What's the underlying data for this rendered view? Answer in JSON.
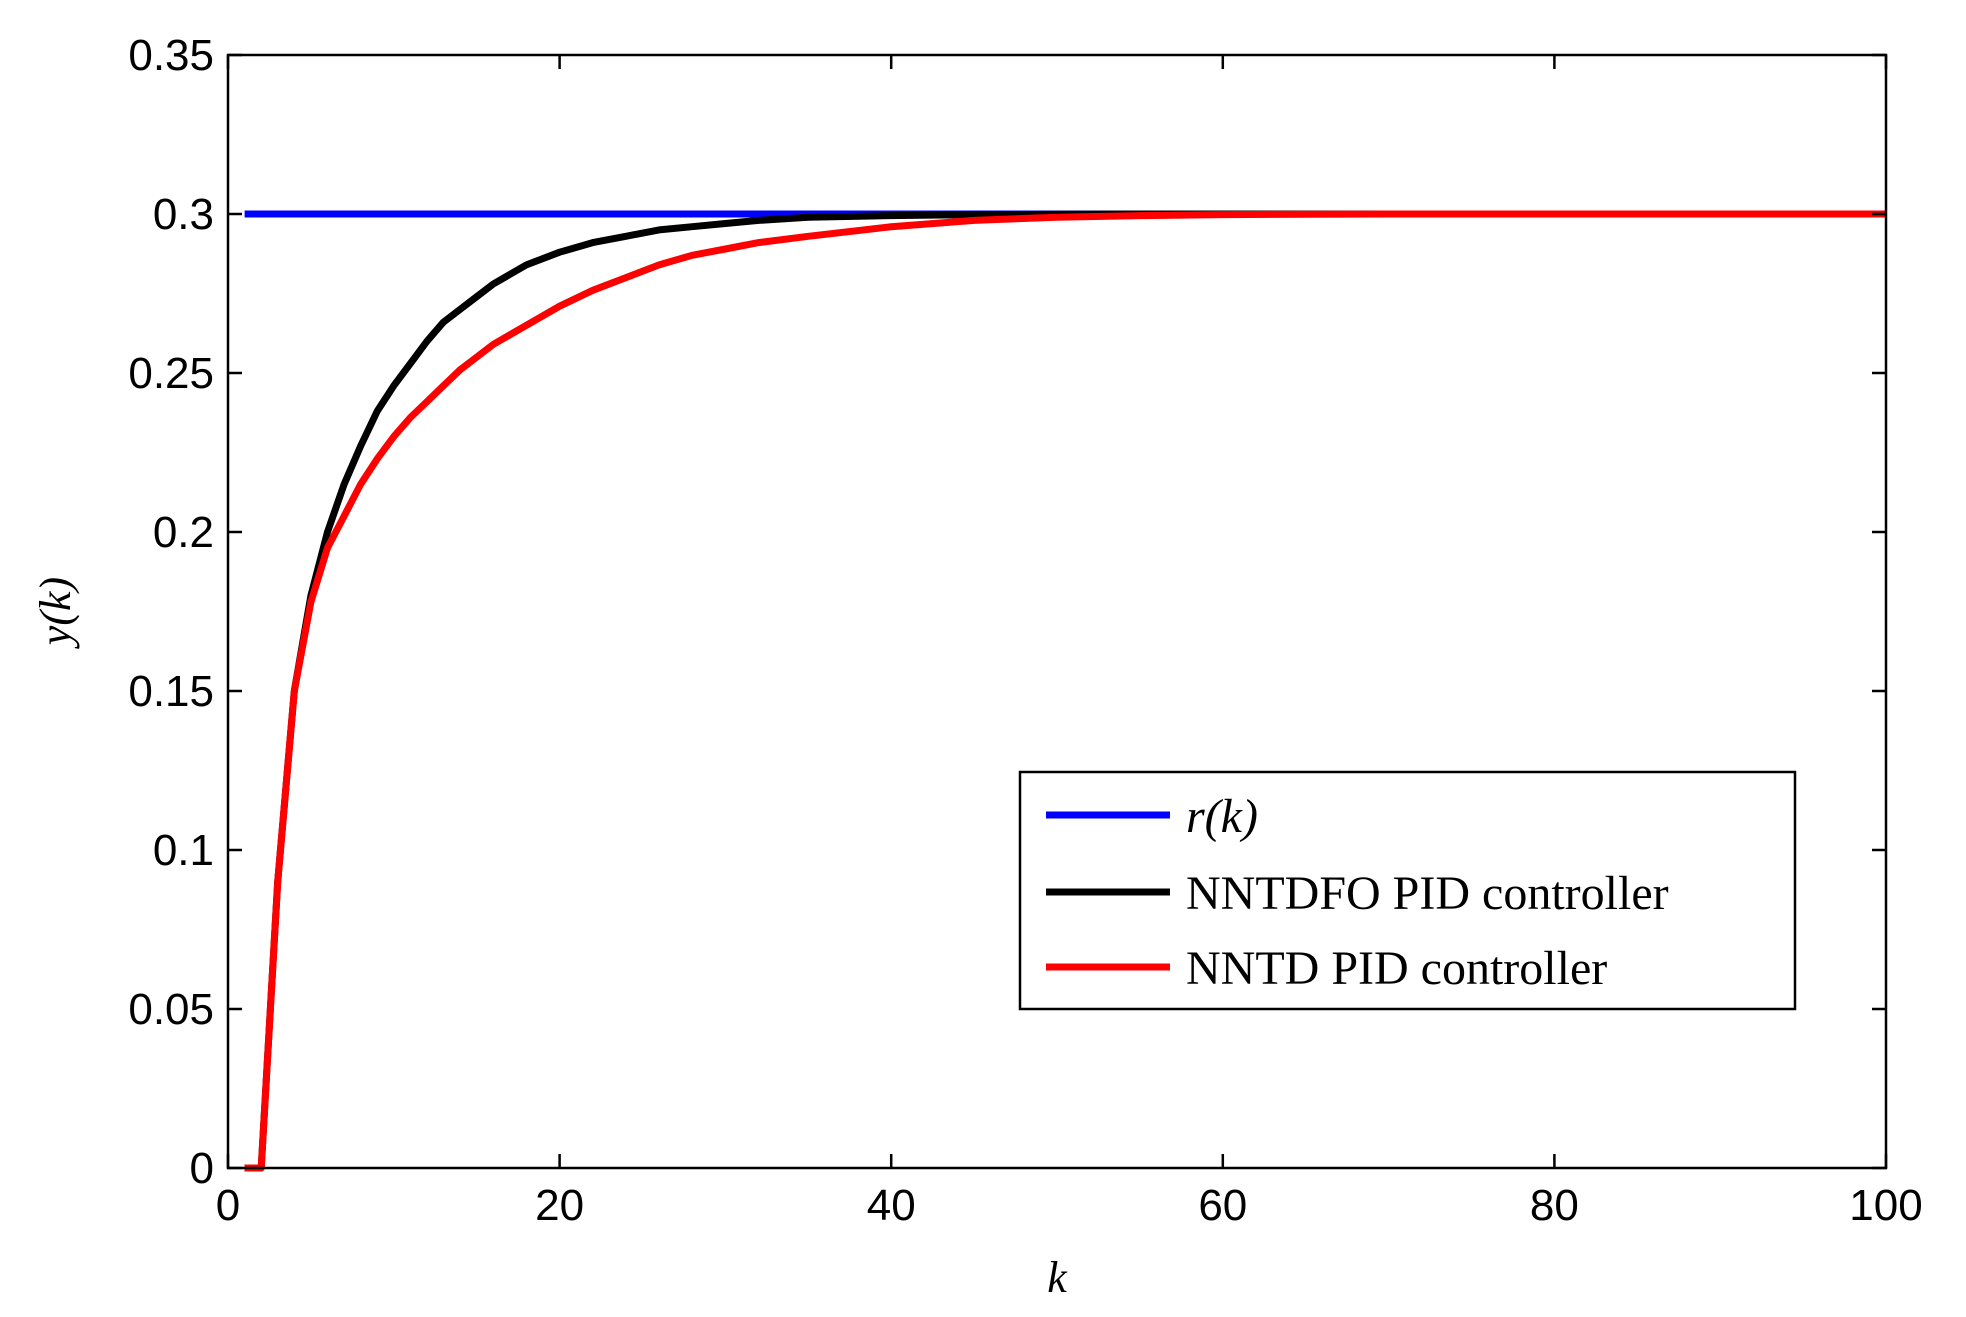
{
  "chart_data": {
    "type": "line",
    "title": "",
    "xlabel": "k",
    "ylabel": "y(k)",
    "xlim": [
      0,
      100
    ],
    "ylim": [
      0,
      0.35
    ],
    "xticks": [
      0,
      20,
      40,
      60,
      80,
      100
    ],
    "xtick_labels": [
      "0",
      "20",
      "40",
      "60",
      "80",
      "100"
    ],
    "yticks": [
      0,
      0.05,
      0.1,
      0.15,
      0.2,
      0.25,
      0.3,
      0.35
    ],
    "ytick_labels": [
      "0",
      "0.05",
      "0.1",
      "0.15",
      "0.2",
      "0.25",
      "0.3",
      "0.35"
    ],
    "grid": false,
    "legend_position": "bottom-right",
    "series": [
      {
        "name": "r(k)",
        "color": "#0000ff",
        "x": [
          1,
          100
        ],
        "y": [
          0.3,
          0.3
        ]
      },
      {
        "name": "NNTDFO PID controller",
        "color": "#000000",
        "x": [
          1,
          2,
          3,
          4,
          5,
          6,
          7,
          8,
          9,
          10,
          11,
          12,
          13,
          14,
          15,
          16,
          17,
          18,
          20,
          22,
          24,
          26,
          28,
          30,
          32,
          35,
          40,
          45,
          50,
          55,
          60,
          70,
          80,
          90,
          100
        ],
        "y": [
          0,
          0,
          0.09,
          0.15,
          0.18,
          0.2,
          0.215,
          0.227,
          0.238,
          0.246,
          0.253,
          0.26,
          0.266,
          0.27,
          0.274,
          0.278,
          0.281,
          0.284,
          0.288,
          0.291,
          0.293,
          0.295,
          0.296,
          0.297,
          0.298,
          0.299,
          0.2995,
          0.2998,
          0.2999,
          0.3,
          0.3,
          0.3,
          0.3,
          0.3,
          0.3
        ]
      },
      {
        "name": "NNTD PID controller",
        "color": "#ff0000",
        "x": [
          1,
          2,
          3,
          4,
          5,
          6,
          7,
          8,
          9,
          10,
          11,
          12,
          13,
          14,
          15,
          16,
          17,
          18,
          20,
          22,
          24,
          26,
          28,
          30,
          32,
          35,
          40,
          45,
          50,
          55,
          60,
          70,
          80,
          90,
          100
        ],
        "y": [
          0,
          0,
          0.09,
          0.15,
          0.178,
          0.195,
          0.205,
          0.215,
          0.223,
          0.23,
          0.236,
          0.241,
          0.246,
          0.251,
          0.255,
          0.259,
          0.262,
          0.265,
          0.271,
          0.276,
          0.28,
          0.284,
          0.287,
          0.289,
          0.291,
          0.293,
          0.296,
          0.298,
          0.299,
          0.2995,
          0.2998,
          0.3,
          0.3,
          0.3,
          0.3
        ]
      }
    ]
  }
}
